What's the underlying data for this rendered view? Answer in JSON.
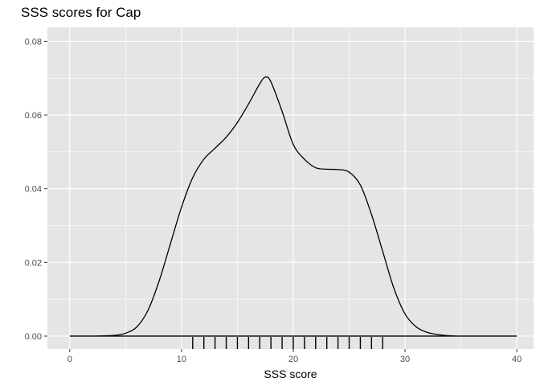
{
  "chart_data": {
    "type": "line",
    "title": "SSS scores for Cap",
    "xlabel": "SSS score",
    "ylabel": "",
    "xlim": [
      -2,
      41.5
    ],
    "ylim": [
      -0.0035,
      0.0838
    ],
    "x_ticks": [
      0,
      10,
      20,
      30,
      40
    ],
    "x_tick_labels": [
      "0",
      "10",
      "20",
      "30",
      "40"
    ],
    "y_ticks": [
      0,
      0.02,
      0.04,
      0.06,
      0.08
    ],
    "y_tick_labels": [
      "0.00",
      "0.02",
      "0.04",
      "0.06",
      "0.08"
    ],
    "grid": true,
    "legend": "none",
    "colors": {
      "panel": "#e5e5e5",
      "grid": "#ffffff",
      "line": "#000000",
      "tick": "#333333"
    },
    "series": [
      {
        "x": [
          0,
          2,
          4,
          5,
          6,
          7,
          8,
          9,
          10,
          11,
          12,
          13,
          14,
          15,
          16,
          17,
          17.5,
          18,
          19,
          20,
          21,
          22,
          23,
          24,
          25,
          26,
          27,
          28,
          29,
          30,
          31,
          32,
          33,
          34,
          35,
          36,
          38,
          40
        ],
        "y": [
          0,
          0,
          0.0002,
          0.0008,
          0.0025,
          0.007,
          0.015,
          0.025,
          0.035,
          0.043,
          0.048,
          0.051,
          0.054,
          0.058,
          0.063,
          0.0685,
          0.0703,
          0.069,
          0.061,
          0.052,
          0.048,
          0.0457,
          0.0453,
          0.0452,
          0.0445,
          0.041,
          0.033,
          0.023,
          0.013,
          0.006,
          0.0025,
          0.001,
          0.0004,
          0.0001,
          0,
          0,
          0,
          0
        ]
      }
    ],
    "rug": [
      11,
      12,
      13,
      14,
      15,
      16,
      17,
      18,
      19,
      20,
      21,
      22,
      23,
      24,
      25,
      26,
      27,
      28
    ]
  }
}
